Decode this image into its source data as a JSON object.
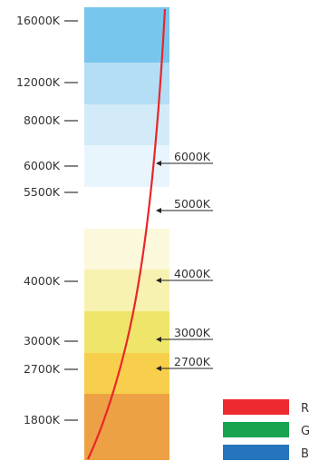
{
  "scale_labels": [
    "16000K",
    "12000K",
    "8000K",
    "6000K",
    "5500K",
    "4000K",
    "3000K",
    "2700K",
    "1800K"
  ],
  "bands": [
    {
      "color": "#78c6ee"
    },
    {
      "color": "#b3def5"
    },
    {
      "color": "#d3ebf8"
    },
    {
      "color": "#e9f5fc"
    },
    {
      "color": "#ffffff"
    },
    {
      "color": "#fcf8dc"
    },
    {
      "color": "#f7f2b0"
    },
    {
      "color": "#efe56a"
    },
    {
      "color": "#f8cf4c"
    },
    {
      "color": "#eea144"
    }
  ],
  "pointers": [
    "6000K",
    "5000K",
    "4000K",
    "3000K",
    "2700K"
  ],
  "curve": {
    "color": "#e8262b"
  },
  "legend": [
    {
      "label": "R",
      "color": "#ee2a30"
    },
    {
      "label": "G",
      "color": "#17a350"
    },
    {
      "label": "B",
      "color": "#2475bb"
    }
  ]
}
